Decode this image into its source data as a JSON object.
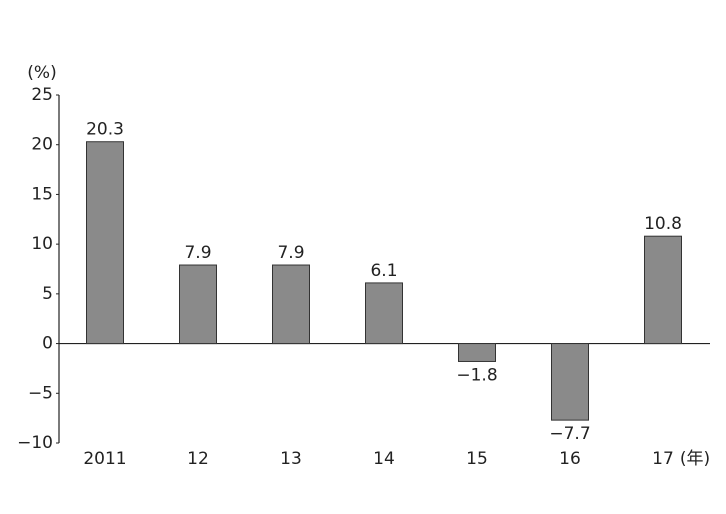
{
  "chart_data": {
    "type": "bar",
    "y_axis_label": "(%)",
    "x_axis_label": "(年)",
    "categories": [
      "2011",
      "12",
      "13",
      "14",
      "15",
      "16",
      "17"
    ],
    "values": [
      20.3,
      7.9,
      7.9,
      6.1,
      -1.8,
      -7.7,
      10.8
    ],
    "value_labels": [
      "20.3",
      "7.9",
      "7.9",
      "6.1",
      "−1.8",
      "−7.7",
      "10.8"
    ],
    "color": "#8a8a8a",
    "ylim": [
      -10,
      25
    ],
    "yticks": [
      {
        "value": -10,
        "label": "−10"
      },
      {
        "value": -5,
        "label": "−5"
      },
      0,
      5,
      10,
      15,
      20,
      25
    ],
    "grid": false
  }
}
